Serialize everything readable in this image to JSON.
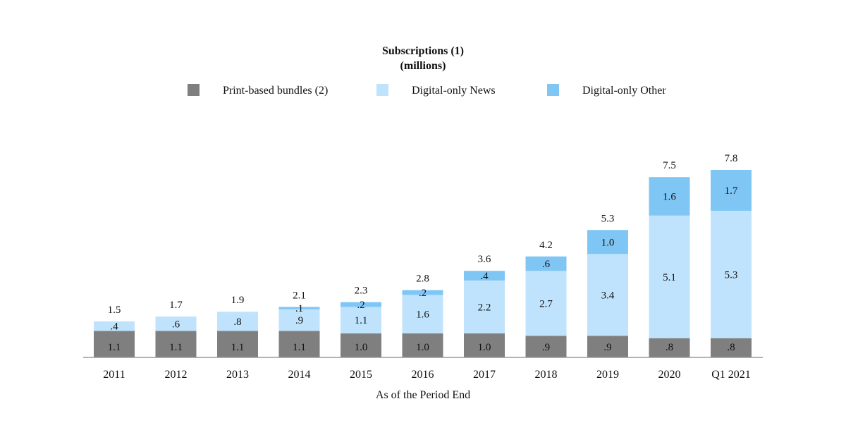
{
  "chart_data": {
    "type": "bar",
    "stacked": true,
    "title": "Subscriptions (1)",
    "subtitle": "(millions)",
    "xlabel": "As of the Period End",
    "ylabel": "",
    "ylim": [
      0,
      7.8
    ],
    "grid": false,
    "legend_position": "top",
    "categories": [
      "2011",
      "2012",
      "2013",
      "2014",
      "2015",
      "2016",
      "2017",
      "2018",
      "2019",
      "2020",
      "Q1 2021"
    ],
    "series": [
      {
        "name": "Print-based bundles (2)",
        "color": "#7f7f7f",
        "values": [
          1.1,
          1.1,
          1.1,
          1.1,
          1.0,
          1.0,
          1.0,
          0.9,
          0.9,
          0.8,
          0.8
        ],
        "labels": [
          "1.1",
          "1.1",
          "1.1",
          "1.1",
          "1.0",
          "1.0",
          "1.0",
          ".9",
          ".9",
          ".8",
          ".8"
        ]
      },
      {
        "name": "Digital-only News",
        "color": "#bfe3fc",
        "values": [
          0.4,
          0.6,
          0.8,
          0.9,
          1.1,
          1.6,
          2.2,
          2.7,
          3.4,
          5.1,
          5.3
        ],
        "labels": [
          ".4",
          ".6",
          ".8",
          ".9",
          "1.1",
          "1.6",
          "2.2",
          "2.7",
          "3.4",
          "5.1",
          "5.3"
        ]
      },
      {
        "name": "Digital-only Other",
        "color": "#7fc6f5",
        "values": [
          0,
          0,
          0,
          0.1,
          0.2,
          0.2,
          0.4,
          0.6,
          1.0,
          1.6,
          1.7
        ],
        "labels": [
          "",
          "",
          "",
          ".1",
          ".2",
          ".2",
          ".4",
          ".6",
          "1.0",
          "1.6",
          "1.7"
        ]
      }
    ],
    "totals": [
      "1.5",
      "1.7",
      "1.9",
      "2.1",
      "2.3",
      "2.8",
      "3.6",
      "4.2",
      "5.3",
      "7.5",
      "7.8"
    ]
  }
}
